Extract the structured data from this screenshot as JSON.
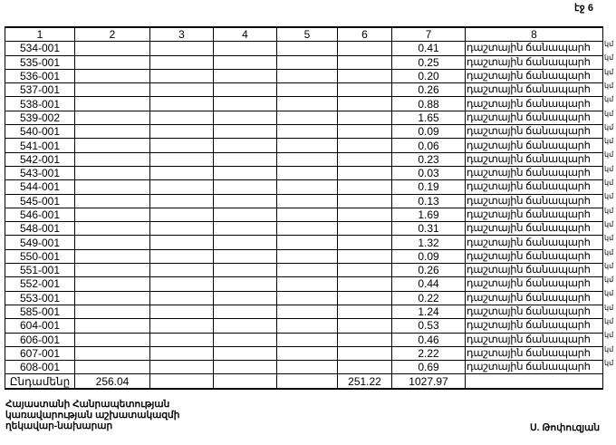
{
  "page_label": "էջ 6",
  "table": {
    "headers": [
      "1",
      "2",
      "3",
      "4",
      "5",
      "6",
      "7",
      "8"
    ],
    "rows": [
      {
        "code": "534-001",
        "length": "0.41",
        "type": "դաշտային ճանապարհ",
        "unit": "կմ"
      },
      {
        "code": "535-001",
        "length": "0.25",
        "type": "դաշտային ճանապարհ",
        "unit": "կմ"
      },
      {
        "code": "536-001",
        "length": "0.20",
        "type": "դաշտային ճանապարհ",
        "unit": "կմ"
      },
      {
        "code": "537-001",
        "length": "0.26",
        "type": "դաշտային ճանապարհ",
        "unit": "կմ"
      },
      {
        "code": "538-001",
        "length": "0.88",
        "type": "դաշտային ճանապարհ",
        "unit": "կմ"
      },
      {
        "code": "539-002",
        "length": "1.65",
        "type": "դաշտային ճանապարհ",
        "unit": "կմ"
      },
      {
        "code": "540-001",
        "length": "0.09",
        "type": "դաշտային ճանապարհ",
        "unit": "կմ"
      },
      {
        "code": "541-001",
        "length": "0.06",
        "type": "դաշտային ճանապարհ",
        "unit": "կմ"
      },
      {
        "code": "542-001",
        "length": "0.23",
        "type": "դաշտային ճանապարհ",
        "unit": "կմ"
      },
      {
        "code": "543-001",
        "length": "0.03",
        "type": "դաշտային ճանապարհ",
        "unit": "կմ"
      },
      {
        "code": "544-001",
        "length": "0.19",
        "type": "դաշտային ճանապարհ",
        "unit": "կմ"
      },
      {
        "code": "545-001",
        "length": "0.13",
        "type": "դաշտային ճանապարհ",
        "unit": "կմ"
      },
      {
        "code": "546-001",
        "length": "1.69",
        "type": "դաշտային ճանապարհ",
        "unit": "կմ"
      },
      {
        "code": "548-001",
        "length": "0.31",
        "type": "դաշտային ճանապարհ",
        "unit": "կմ"
      },
      {
        "code": "549-001",
        "length": "1.32",
        "type": "դաշտային ճանապարհ",
        "unit": "կմ"
      },
      {
        "code": "550-001",
        "length": "0.09",
        "type": "դաշտային ճանապարհ",
        "unit": "կմ"
      },
      {
        "code": "551-001",
        "length": "0.26",
        "type": "դաշտային ճանապարհ",
        "unit": "կմ"
      },
      {
        "code": "552-001",
        "length": "0.44",
        "type": "դաշտային ճանապարհ",
        "unit": "կմ"
      },
      {
        "code": "553-001",
        "length": "0.22",
        "type": "դաշտային ճանապարհ",
        "unit": "կմ"
      },
      {
        "code": "585-001",
        "length": "1.24",
        "type": "դաշտային ճանապարհ",
        "unit": "կմ"
      },
      {
        "code": "604-001",
        "length": "0.53",
        "type": "դաշտային ճանապարհ",
        "unit": "կմ"
      },
      {
        "code": "606-001",
        "length": "0.46",
        "type": "դաշտային ճանապարհ",
        "unit": "կմ"
      },
      {
        "code": "607-001",
        "length": "2.22",
        "type": "դաշտային ճանապարհ",
        "unit": "կմ"
      },
      {
        "code": "608-001",
        "length": "0.69",
        "type": "դաշտային ճանապարհ",
        "unit": "կմ"
      }
    ],
    "total": {
      "label": "Ընդամենը",
      "col2": "256.04",
      "col6": "251.22",
      "col7": "1027.97"
    }
  },
  "footer": {
    "lines": [
      "Հայաստանի Հանրապետության",
      "կառավարության աշխատակազմի",
      "ղեկավար-նախարար"
    ],
    "signature": "Ս. Թոփուզյան"
  }
}
